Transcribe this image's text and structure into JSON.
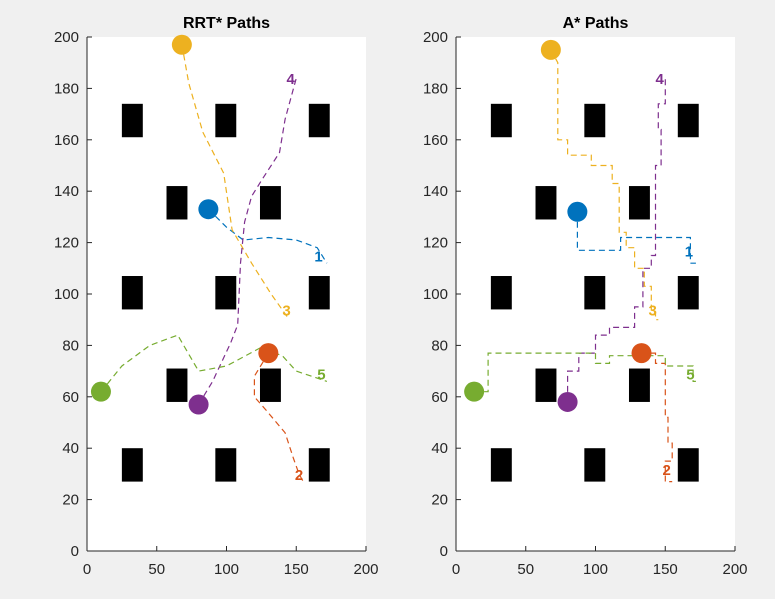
{
  "figure": {
    "background": "#f0f0f0"
  },
  "chart_data": [
    {
      "type": "scatter",
      "title": "RRT* Paths",
      "xlabel": "",
      "ylabel": "",
      "xlim": [
        0,
        200
      ],
      "ylim": [
        0,
        200
      ],
      "xticks": [
        0,
        50,
        100,
        150,
        200
      ],
      "yticks": [
        0,
        20,
        40,
        60,
        80,
        100,
        120,
        140,
        160,
        180,
        200
      ],
      "grid": false,
      "obstacles": [
        [
          25,
          27,
          15,
          13
        ],
        [
          92,
          27,
          15,
          13
        ],
        [
          159,
          27,
          15,
          13
        ],
        [
          57,
          58,
          15,
          13
        ],
        [
          124,
          58,
          15,
          13
        ],
        [
          25,
          94,
          15,
          13
        ],
        [
          92,
          94,
          15,
          13
        ],
        [
          159,
          94,
          15,
          13
        ],
        [
          57,
          129,
          15,
          13
        ],
        [
          124,
          129,
          15,
          13
        ],
        [
          25,
          161,
          15,
          13
        ],
        [
          92,
          161,
          15,
          13
        ],
        [
          159,
          161,
          15,
          13
        ]
      ],
      "series": [
        {
          "label": "1",
          "color": "#0072bd",
          "start": [
            87,
            133
          ],
          "goal": [
            172,
            112
          ],
          "path": [
            [
              87,
              133
            ],
            [
              100,
              126
            ],
            [
              112,
              121
            ],
            [
              130,
              122
            ],
            [
              150,
              121
            ],
            [
              165,
              118
            ],
            [
              172,
              112
            ]
          ],
          "label_pos": [
            166,
            115
          ]
        },
        {
          "label": "2",
          "color": "#d95319",
          "start": [
            130,
            77
          ],
          "goal": [
            155,
            27
          ],
          "path": [
            [
              130,
              77
            ],
            [
              120,
              68
            ],
            [
              120,
              60
            ],
            [
              128,
              55
            ],
            [
              142,
              46
            ],
            [
              148,
              36
            ],
            [
              152,
              30
            ],
            [
              155,
              27
            ]
          ],
          "label_pos": [
            152,
            30
          ]
        },
        {
          "label": "3",
          "color": "#edb120",
          "start": [
            68,
            197
          ],
          "goal": [
            145,
            90
          ],
          "path": [
            [
              68,
              197
            ],
            [
              73,
              182
            ],
            [
              83,
              163
            ],
            [
              98,
              147
            ],
            [
              104,
              125
            ],
            [
              118,
              112
            ],
            [
              132,
              100
            ],
            [
              145,
              90
            ]
          ],
          "label_pos": [
            143,
            94
          ]
        },
        {
          "label": "4",
          "color": "#7e2f8e",
          "start": [
            80,
            57
          ],
          "goal": [
            150,
            184
          ],
          "path": [
            [
              80,
              57
            ],
            [
              90,
              66
            ],
            [
              103,
              81
            ],
            [
              108,
              88
            ],
            [
              110,
              112
            ],
            [
              113,
              128
            ],
            [
              118,
              138
            ],
            [
              126,
              145
            ],
            [
              138,
              155
            ],
            [
              142,
              168
            ],
            [
              150,
              184
            ]
          ],
          "label_pos": [
            146,
            184
          ]
        },
        {
          "label": "5",
          "color": "#77ac30",
          "start": [
            10,
            62
          ],
          "goal": [
            172,
            66
          ],
          "path": [
            [
              10,
              62
            ],
            [
              25,
              72
            ],
            [
              45,
              80
            ],
            [
              65,
              84
            ],
            [
              80,
              70
            ],
            [
              100,
              72
            ],
            [
              124,
              79
            ],
            [
              140,
              76
            ],
            [
              150,
              70
            ],
            [
              172,
              66
            ]
          ],
          "label_pos": [
            168,
            69
          ]
        }
      ]
    },
    {
      "type": "scatter",
      "title": "A* Paths",
      "xlabel": "",
      "ylabel": "",
      "xlim": [
        0,
        200
      ],
      "ylim": [
        0,
        200
      ],
      "xticks": [
        0,
        50,
        100,
        150,
        200
      ],
      "yticks": [
        0,
        20,
        40,
        60,
        80,
        100,
        120,
        140,
        160,
        180,
        200
      ],
      "grid": false,
      "obstacles": [
        [
          25,
          27,
          15,
          13
        ],
        [
          92,
          27,
          15,
          13
        ],
        [
          159,
          27,
          15,
          13
        ],
        [
          57,
          58,
          15,
          13
        ],
        [
          124,
          58,
          15,
          13
        ],
        [
          25,
          94,
          15,
          13
        ],
        [
          92,
          94,
          15,
          13
        ],
        [
          159,
          94,
          15,
          13
        ],
        [
          57,
          129,
          15,
          13
        ],
        [
          124,
          129,
          15,
          13
        ],
        [
          25,
          161,
          15,
          13
        ],
        [
          92,
          161,
          15,
          13
        ],
        [
          159,
          161,
          15,
          13
        ]
      ],
      "series": [
        {
          "label": "1",
          "color": "#0072bd",
          "start": [
            87,
            132
          ],
          "goal": [
            172,
            112
          ],
          "path": [
            [
              87,
              132
            ],
            [
              87,
              117
            ],
            [
              118,
              117
            ],
            [
              118,
              122
            ],
            [
              168,
              122
            ],
            [
              168,
              112
            ],
            [
              172,
              112
            ]
          ],
          "label_pos": [
            167,
            117
          ]
        },
        {
          "label": "2",
          "color": "#d95319",
          "start": [
            133,
            77
          ],
          "goal": [
            155,
            27
          ],
          "path": [
            [
              133,
              77
            ],
            [
              143,
              77
            ],
            [
              143,
              73
            ],
            [
              150,
              73
            ],
            [
              150,
              52
            ],
            [
              152,
              52
            ],
            [
              152,
              42
            ],
            [
              155,
              42
            ],
            [
              155,
              35
            ],
            [
              150,
              35
            ],
            [
              150,
              27
            ],
            [
              155,
              27
            ]
          ],
          "label_pos": [
            151,
            32
          ]
        },
        {
          "label": "3",
          "color": "#edb120",
          "start": [
            68,
            195
          ],
          "goal": [
            145,
            90
          ],
          "path": [
            [
              68,
              195
            ],
            [
              73,
              190
            ],
            [
              73,
              160
            ],
            [
              80,
              160
            ],
            [
              80,
              154
            ],
            [
              97,
              154
            ],
            [
              97,
              150
            ],
            [
              112,
              150
            ],
            [
              112,
              143
            ],
            [
              117,
              143
            ],
            [
              117,
              124
            ],
            [
              122,
              124
            ],
            [
              122,
              118
            ],
            [
              128,
              118
            ],
            [
              128,
              110
            ],
            [
              135,
              110
            ],
            [
              135,
              103
            ],
            [
              140,
              103
            ],
            [
              140,
              93
            ],
            [
              143,
              93
            ],
            [
              143,
              90
            ],
            [
              145,
              90
            ]
          ],
          "label_pos": [
            141,
            94
          ]
        },
        {
          "label": "4",
          "color": "#7e2f8e",
          "start": [
            80,
            58
          ],
          "goal": [
            150,
            184
          ],
          "path": [
            [
              80,
              58
            ],
            [
              80,
              70
            ],
            [
              88,
              70
            ],
            [
              88,
              77
            ],
            [
              100,
              77
            ],
            [
              100,
              84
            ],
            [
              110,
              84
            ],
            [
              110,
              87
            ],
            [
              128,
              87
            ],
            [
              128,
              95
            ],
            [
              134,
              95
            ],
            [
              134,
              110
            ],
            [
              140,
              110
            ],
            [
              140,
              115
            ],
            [
              143,
              115
            ],
            [
              143,
              150
            ],
            [
              147,
              150
            ],
            [
              147,
              164
            ],
            [
              145,
              164
            ],
            [
              145,
              174
            ],
            [
              150,
              174
            ],
            [
              150,
              184
            ]
          ],
          "label_pos": [
            146,
            184
          ]
        },
        {
          "label": "5",
          "color": "#77ac30",
          "start": [
            13,
            62
          ],
          "goal": [
            172,
            66
          ],
          "path": [
            [
              13,
              62
            ],
            [
              23,
              62
            ],
            [
              23,
              77
            ],
            [
              100,
              77
            ],
            [
              100,
              73
            ],
            [
              110,
              73
            ],
            [
              110,
              76
            ],
            [
              150,
              76
            ],
            [
              150,
              72
            ],
            [
              170,
              72
            ],
            [
              170,
              66
            ],
            [
              172,
              66
            ]
          ],
          "label_pos": [
            168,
            69
          ]
        }
      ]
    }
  ]
}
